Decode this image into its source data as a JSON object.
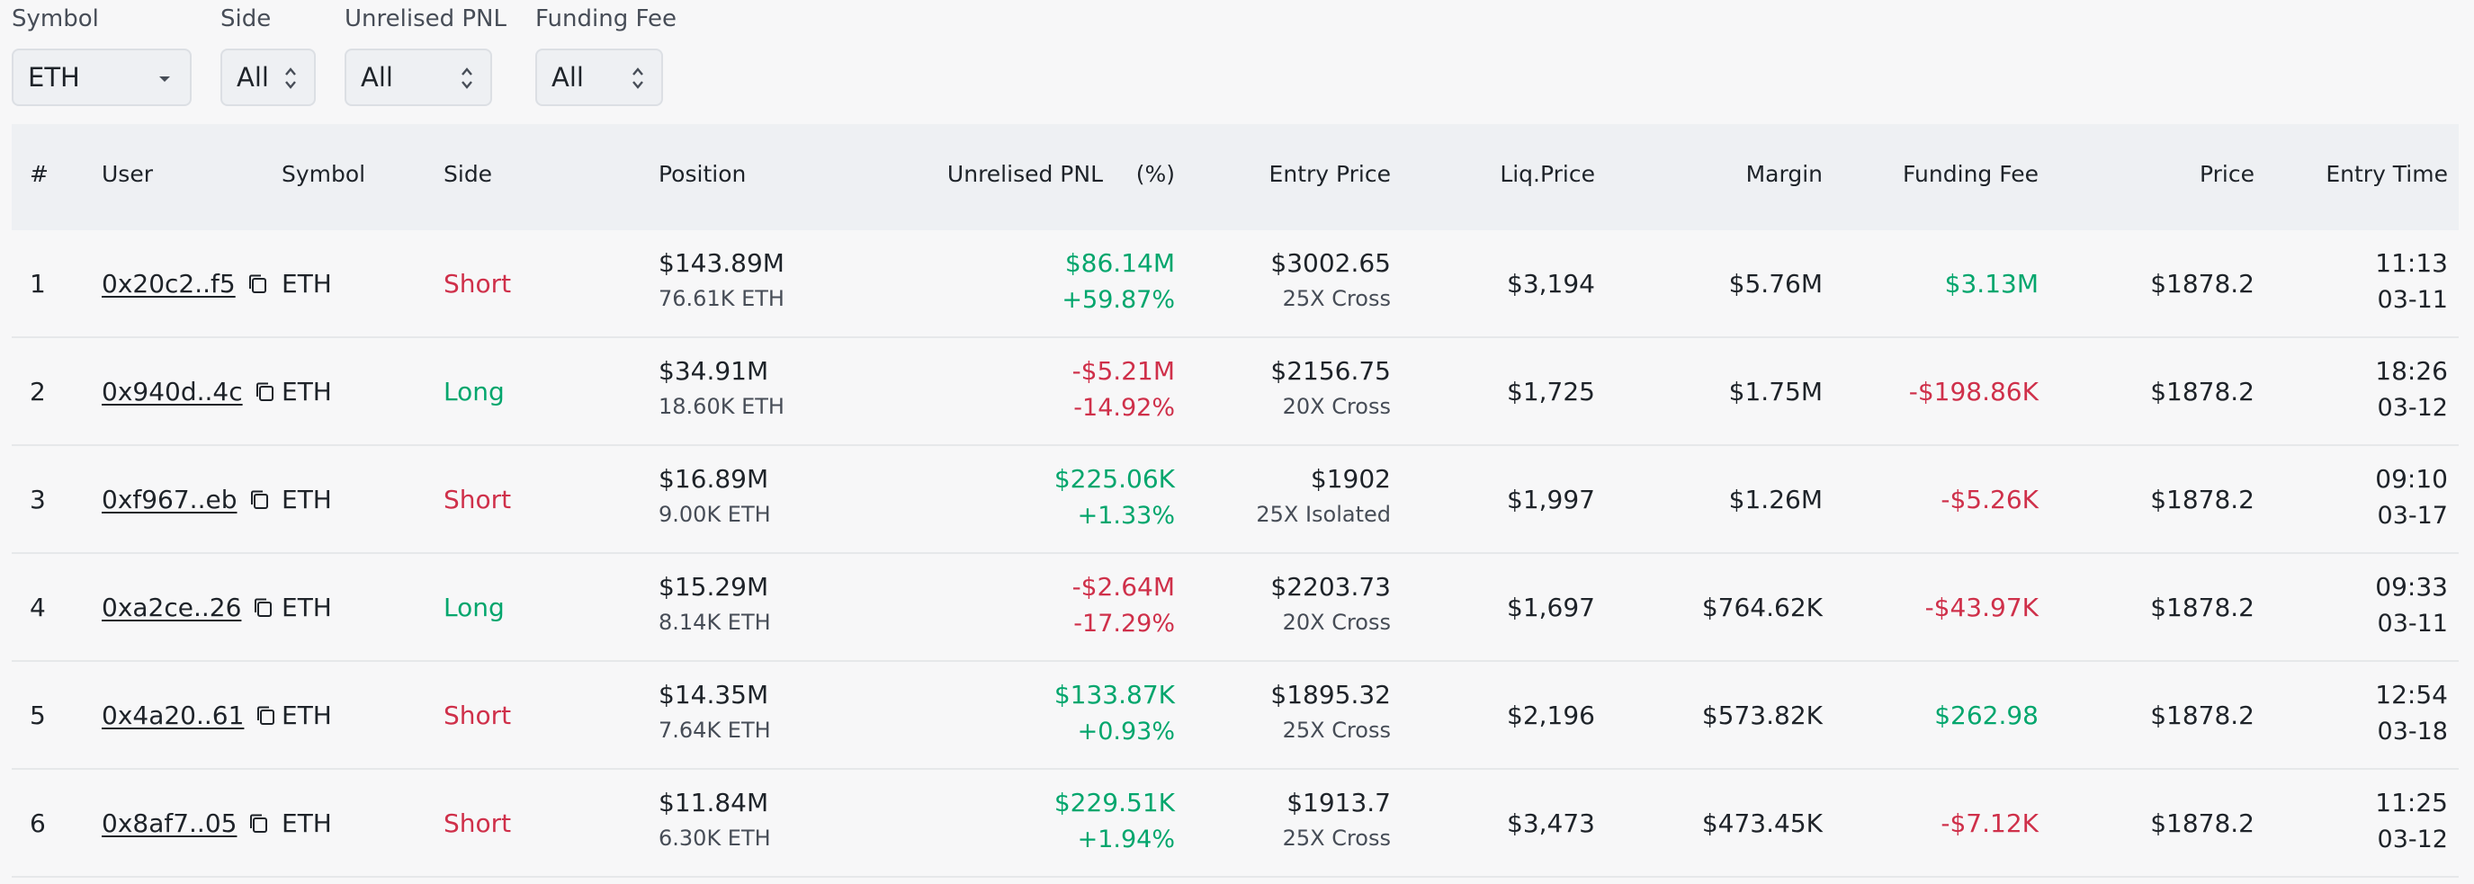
{
  "filters": {
    "symbol": {
      "label": "Symbol",
      "value": "ETH"
    },
    "side": {
      "label": "Side",
      "value": "All"
    },
    "pnl": {
      "label": "Unrelised PNL",
      "value": "All"
    },
    "fee": {
      "label": "Funding Fee",
      "value": "All"
    }
  },
  "headers": {
    "num": "#",
    "user": "User",
    "symbol": "Symbol",
    "side": "Side",
    "position": "Position",
    "pnl": "Unrelised PNL",
    "pct": "(%)",
    "entry": "Entry Price",
    "liq": "Liq.Price",
    "margin": "Margin",
    "fee": "Funding Fee",
    "price": "Price",
    "time": "Entry Time"
  },
  "colors": {
    "green": "#03a66d",
    "red": "#cf304a"
  },
  "rows": [
    {
      "num": "1",
      "user": "0x20c2..f5",
      "symbol": "ETH",
      "side": "Short",
      "side_color": "red",
      "pos": "$143.89M",
      "pos_sub": "76.61K ETH",
      "pnl": "$86.14M",
      "pnl_pct": "+59.87%",
      "pnl_color": "green",
      "entry": "$3002.65",
      "entry_sub": "25X Cross",
      "liq": "$3,194",
      "margin": "$5.76M",
      "fee": "$3.13M",
      "fee_color": "green",
      "price": "$1878.2",
      "time": "11:13",
      "date": "03-11"
    },
    {
      "num": "2",
      "user": "0x940d..4c",
      "symbol": "ETH",
      "side": "Long",
      "side_color": "green",
      "pos": "$34.91M",
      "pos_sub": "18.60K ETH",
      "pnl": "-$5.21M",
      "pnl_pct": "-14.92%",
      "pnl_color": "red",
      "entry": "$2156.75",
      "entry_sub": "20X Cross",
      "liq": "$1,725",
      "margin": "$1.75M",
      "fee": "-$198.86K",
      "fee_color": "red",
      "price": "$1878.2",
      "time": "18:26",
      "date": "03-12"
    },
    {
      "num": "3",
      "user": "0xf967..eb",
      "symbol": "ETH",
      "side": "Short",
      "side_color": "red",
      "pos": "$16.89M",
      "pos_sub": "9.00K ETH",
      "pnl": "$225.06K",
      "pnl_pct": "+1.33%",
      "pnl_color": "green",
      "entry": "$1902",
      "entry_sub": "25X Isolated",
      "liq": "$1,997",
      "margin": "$1.26M",
      "fee": "-$5.26K",
      "fee_color": "red",
      "price": "$1878.2",
      "time": "09:10",
      "date": "03-17"
    },
    {
      "num": "4",
      "user": "0xa2ce..26",
      "symbol": "ETH",
      "side": "Long",
      "side_color": "green",
      "pos": "$15.29M",
      "pos_sub": "8.14K ETH",
      "pnl": "-$2.64M",
      "pnl_pct": "-17.29%",
      "pnl_color": "red",
      "entry": "$2203.73",
      "entry_sub": "20X Cross",
      "liq": "$1,697",
      "margin": "$764.62K",
      "fee": "-$43.97K",
      "fee_color": "red",
      "price": "$1878.2",
      "time": "09:33",
      "date": "03-11"
    },
    {
      "num": "5",
      "user": "0x4a20..61",
      "symbol": "ETH",
      "side": "Short",
      "side_color": "red",
      "pos": "$14.35M",
      "pos_sub": "7.64K ETH",
      "pnl": "$133.87K",
      "pnl_pct": "+0.93%",
      "pnl_color": "green",
      "entry": "$1895.32",
      "entry_sub": "25X Cross",
      "liq": "$2,196",
      "margin": "$573.82K",
      "fee": "$262.98",
      "fee_color": "green",
      "price": "$1878.2",
      "time": "12:54",
      "date": "03-18"
    },
    {
      "num": "6",
      "user": "0x8af7..05",
      "symbol": "ETH",
      "side": "Short",
      "side_color": "red",
      "pos": "$11.84M",
      "pos_sub": "6.30K ETH",
      "pnl": "$229.51K",
      "pnl_pct": "+1.94%",
      "pnl_color": "green",
      "entry": "$1913.7",
      "entry_sub": "25X Cross",
      "liq": "$3,473",
      "margin": "$473.45K",
      "fee": "-$7.12K",
      "fee_color": "red",
      "price": "$1878.2",
      "time": "11:25",
      "date": "03-12"
    }
  ]
}
